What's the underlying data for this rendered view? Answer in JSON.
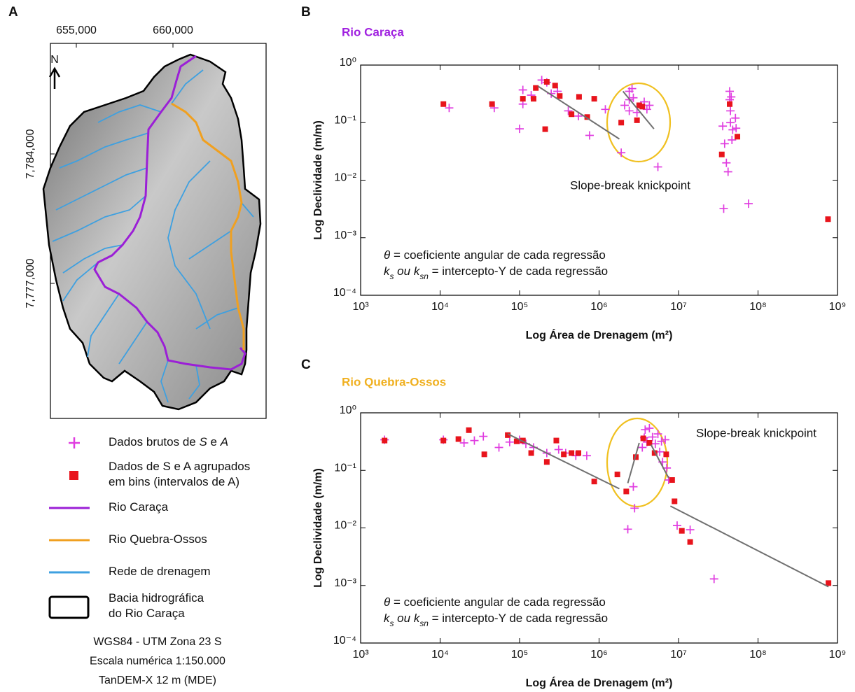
{
  "map": {
    "panel_label": "A",
    "x_labels": [
      "655,000",
      "660,000"
    ],
    "y_labels": [
      "7,784,000",
      "7,777,000"
    ],
    "north": "N",
    "footer": [
      "WGS84 - UTM Zona 23 S",
      "Escala numérica 1:150.000",
      "TanDEM-X 12 m (MDE)"
    ]
  },
  "legend": {
    "items": [
      {
        "marker": "plus",
        "color": "#e03ce0",
        "lines": [
          [
            {
              "text": "Dados brutos de "
            },
            {
              "text": "S",
              "italic": true
            },
            {
              "text": " e "
            },
            {
              "text": "A",
              "italic": true
            }
          ]
        ]
      },
      {
        "marker": "square",
        "color": "#e8141c",
        "lines": [
          [
            {
              "text": "Dados de S e A agrupados"
            }
          ],
          [
            {
              "text": "em bins (intervalos de A)"
            }
          ]
        ]
      },
      {
        "marker": "line",
        "color": "#9b1fd6",
        "lines": [
          [
            {
              "text": "Rio Caraça"
            }
          ]
        ]
      },
      {
        "marker": "line",
        "color": "#f0a020",
        "lines": [
          [
            {
              "text": "Rio Quebra-Ossos"
            }
          ]
        ]
      },
      {
        "marker": "line",
        "color": "#3ea0e0",
        "lines": [
          [
            {
              "text": "Rede de drenagem"
            }
          ]
        ]
      },
      {
        "marker": "box",
        "color": "#000000",
        "lines": [
          [
            {
              "text": "Bacia hidrográfica"
            }
          ],
          [
            {
              "text": "do Rio Caraça"
            }
          ]
        ]
      }
    ]
  },
  "chart_data": [
    {
      "type": "scatter",
      "panel_label": "B",
      "title": "Rio Caraça",
      "title_color": "#a020e0",
      "xlabel": "Log Área de Drenagem (m²)",
      "ylabel": "Log Declividade (m/m)",
      "xscale": "log",
      "yscale": "log",
      "xlim": [
        1000,
        1000000000
      ],
      "ylim": [
        0.0001,
        1
      ],
      "xticks": [
        {
          "value": 1000,
          "label": "10³"
        },
        {
          "value": 10000,
          "label": "10⁴"
        },
        {
          "value": 100000,
          "label": "10⁵"
        },
        {
          "value": 1000000,
          "label": "10⁶"
        },
        {
          "value": 10000000,
          "label": "10⁷"
        },
        {
          "value": 100000000,
          "label": "10⁸"
        },
        {
          "value": 1000000000,
          "label": "10⁹"
        }
      ],
      "yticks": [
        {
          "value": 0.0001,
          "label": "10⁻⁴"
        },
        {
          "value": 0.001,
          "label": "10⁻³"
        },
        {
          "value": 0.01,
          "label": "10⁻²"
        },
        {
          "value": 0.1,
          "label": "10⁻¹"
        },
        {
          "value": 1,
          "label": "10⁰"
        }
      ],
      "series": [
        {
          "marker": "plus",
          "color": "#e03ce0",
          "x": [
            13000,
            48000,
            100000,
            110000,
            110000,
            140000,
            190000,
            220000,
            250000,
            300000,
            410000,
            550000,
            760000,
            1200000,
            1900000,
            2100000,
            2400000,
            2400000,
            2600000,
            2700000,
            2400000,
            3000000,
            3700000,
            4000000,
            4300000,
            5500000,
            36000000,
            38000000,
            40000000,
            42000000,
            44000000,
            44000000,
            45000000,
            45000000,
            47000000,
            46000000,
            48000000,
            52000000,
            53000000,
            37000000,
            76000000
          ],
          "values": [
            0.18,
            0.18,
            0.078,
            0.37,
            0.21,
            0.3,
            0.55,
            0.5,
            0.32,
            0.35,
            0.16,
            0.13,
            0.06,
            0.17,
            0.03,
            0.2,
            0.25,
            0.35,
            0.39,
            0.27,
            0.16,
            0.15,
            0.23,
            0.17,
            0.2,
            0.017,
            0.087,
            0.043,
            0.02,
            0.014,
            0.35,
            0.25,
            0.16,
            0.1,
            0.05,
            0.28,
            0.075,
            0.12,
            0.08,
            0.0032,
            0.0039
          ]
        },
        {
          "marker": "square",
          "color": "#e8141c",
          "x": [
            11000,
            45000,
            110000,
            150000,
            160000,
            220000,
            280000,
            320000,
            210000,
            450000,
            560000,
            710000,
            870000,
            1900000,
            3000000,
            3200000,
            3500000,
            35000000,
            44000000,
            55000000,
            760000000
          ],
          "values": [
            0.21,
            0.21,
            0.26,
            0.26,
            0.4,
            0.51,
            0.44,
            0.29,
            0.077,
            0.14,
            0.28,
            0.125,
            0.26,
            0.1,
            0.11,
            0.2,
            0.19,
            0.028,
            0.21,
            0.057,
            0.0021
          ]
        }
      ],
      "regression_color": "#707070",
      "regressions": [
        {
          "x": [
            170000,
            1800000
          ],
          "values": [
            0.43,
            0.052
          ]
        },
        {
          "x": [
            2000000,
            4900000
          ],
          "values": [
            0.35,
            0.078
          ]
        }
      ],
      "highlight_color": "#f0c020",
      "annotation": "Slope-break knickpoint",
      "notes": [
        [
          {
            "text": "θ",
            "italic": true
          },
          {
            "text": " = coeficiente angular de cada regressão"
          }
        ],
        [
          {
            "text": "k",
            "italic": true
          },
          {
            "text": "s",
            "italic": true,
            "sub": true
          },
          {
            "text": " ou ",
            "italic": true
          },
          {
            "text": "k",
            "italic": true
          },
          {
            "text": "sn",
            "italic": true,
            "sub": true
          },
          {
            "text": " = intercepto-Y de cada regressão"
          }
        ]
      ]
    },
    {
      "type": "scatter",
      "panel_label": "C",
      "title": "Rio Quebra-Ossos",
      "title_color": "#f0b020",
      "xlabel": "Log Área de Drenagem (m²)",
      "ylabel": "Log Declividade (m/m)",
      "xscale": "log",
      "yscale": "log",
      "xlim": [
        1000,
        1000000000
      ],
      "ylim": [
        0.0001,
        1
      ],
      "xticks": [
        {
          "value": 1000,
          "label": "10³"
        },
        {
          "value": 10000,
          "label": "10⁴"
        },
        {
          "value": 100000,
          "label": "10⁵"
        },
        {
          "value": 1000000,
          "label": "10⁶"
        },
        {
          "value": 10000000,
          "label": "10⁷"
        },
        {
          "value": 100000000,
          "label": "10⁸"
        },
        {
          "value": 1000000000,
          "label": "10⁹"
        }
      ],
      "yticks": [
        {
          "value": 0.0001,
          "label": "10⁻⁴"
        },
        {
          "value": 0.001,
          "label": "10⁻³"
        },
        {
          "value": 0.01,
          "label": "10⁻²"
        },
        {
          "value": 0.1,
          "label": "10⁻¹"
        },
        {
          "value": 1,
          "label": "10⁰"
        }
      ],
      "series": [
        {
          "marker": "plus",
          "color": "#e03ce0",
          "x": [
            2000,
            11000,
            20000,
            27000,
            35000,
            55000,
            75000,
            100000,
            120000,
            150000,
            220000,
            310000,
            380000,
            510000,
            700000,
            2300000,
            2800000,
            2700000,
            3500000,
            3700000,
            3800000,
            4000000,
            4300000,
            4700000,
            5100000,
            5500000,
            5800000,
            6100000,
            6300000,
            6800000,
            7100000,
            7500000,
            9600000,
            14000000,
            28000000
          ],
          "values": [
            0.34,
            0.34,
            0.3,
            0.33,
            0.39,
            0.25,
            0.31,
            0.34,
            0.29,
            0.25,
            0.2,
            0.23,
            0.2,
            0.18,
            0.18,
            0.0095,
            0.022,
            0.052,
            0.25,
            0.37,
            0.51,
            0.31,
            0.54,
            0.38,
            0.29,
            0.43,
            0.21,
            0.32,
            0.14,
            0.34,
            0.11,
            0.068,
            0.011,
            0.0093,
            0.0013
          ]
        },
        {
          "marker": "square",
          "color": "#e8141c",
          "x": [
            2000,
            11000,
            17000,
            23000,
            36000,
            71000,
            92000,
            110000,
            140000,
            220000,
            290000,
            360000,
            450000,
            550000,
            870000,
            1700000,
            2200000,
            2900000,
            3600000,
            4300000,
            5000000,
            7000000,
            8300000,
            8900000,
            11000000,
            14000000,
            770000000
          ],
          "values": [
            0.33,
            0.33,
            0.35,
            0.5,
            0.19,
            0.41,
            0.32,
            0.33,
            0.2,
            0.14,
            0.33,
            0.19,
            0.2,
            0.2,
            0.064,
            0.085,
            0.043,
            0.17,
            0.36,
            0.3,
            0.2,
            0.19,
            0.068,
            0.029,
            0.0089,
            0.0057,
            0.0011
          ]
        }
      ],
      "regression_color": "#707070",
      "regressions": [
        {
          "x": [
            71000,
            1800000
          ],
          "values": [
            0.43,
            0.048
          ]
        },
        {
          "x": [
            2300000,
            3200000
          ],
          "values": [
            0.06,
            0.3
          ]
        },
        {
          "x": [
            4500000,
            7500000
          ],
          "values": [
            0.28,
            0.074
          ]
        },
        {
          "x": [
            7900000,
            770000000
          ],
          "values": [
            0.024,
            0.00095
          ]
        }
      ],
      "highlight_color": "#f0c020",
      "annotation": "Slope-break knickpoint",
      "notes": [
        [
          {
            "text": "θ",
            "italic": true
          },
          {
            "text": " = coeficiente angular de cada regressão"
          }
        ],
        [
          {
            "text": "k",
            "italic": true
          },
          {
            "text": "s",
            "italic": true,
            "sub": true
          },
          {
            "text": " ou ",
            "italic": true
          },
          {
            "text": "k",
            "italic": true
          },
          {
            "text": "sn",
            "italic": true,
            "sub": true
          },
          {
            "text": " = intercepto-Y de cada regressão"
          }
        ]
      ]
    }
  ]
}
